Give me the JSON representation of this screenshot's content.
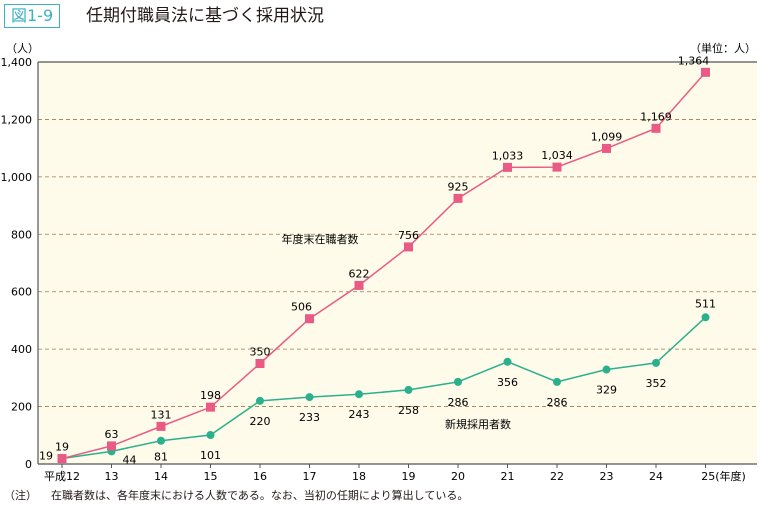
{
  "figure_label": "図1-9",
  "title": "任期付職員法に基づく採用状況",
  "note_prefix": "（注）",
  "note": "在職者数は、各年度末における人数である。なお、当初の任期により算出している。",
  "chart_data": {
    "type": "line",
    "ylabel": "（人）",
    "unit_label": "（単位：人）",
    "xlabel_suffix": "(年度)",
    "categories": [
      "平成12",
      "13",
      "14",
      "15",
      "16",
      "17",
      "18",
      "19",
      "20",
      "21",
      "22",
      "23",
      "24",
      "25"
    ],
    "ylim": [
      0,
      1400
    ],
    "yticks": [
      0,
      200,
      400,
      600,
      800,
      1000,
      1200,
      1400
    ],
    "ytick_labels": [
      "0",
      "200",
      "400",
      "600",
      "800",
      "1,000",
      "1,200",
      "1,400"
    ],
    "grid": true,
    "background": "#fffbeb",
    "series": [
      {
        "name": "年度末在職者数",
        "color": "#e95b84",
        "marker": "square",
        "values": [
          19,
          63,
          131,
          198,
          350,
          506,
          622,
          756,
          925,
          1033,
          1034,
          1099,
          1169,
          1364
        ],
        "labels": [
          "19",
          "63",
          "131",
          "198",
          "350",
          "506",
          "622",
          "756",
          "925",
          "1,033",
          "1,034",
          "1,099",
          "1,169",
          "1,364"
        ]
      },
      {
        "name": "新規採用者数",
        "color": "#2bb08e",
        "marker": "circle",
        "values": [
          19,
          44,
          81,
          101,
          220,
          233,
          243,
          258,
          286,
          356,
          286,
          329,
          352,
          511
        ],
        "labels": [
          "19",
          "44",
          "81",
          "101",
          "220",
          "233",
          "243",
          "258",
          "286",
          "356",
          "286",
          "329",
          "352",
          "511"
        ]
      }
    ]
  }
}
